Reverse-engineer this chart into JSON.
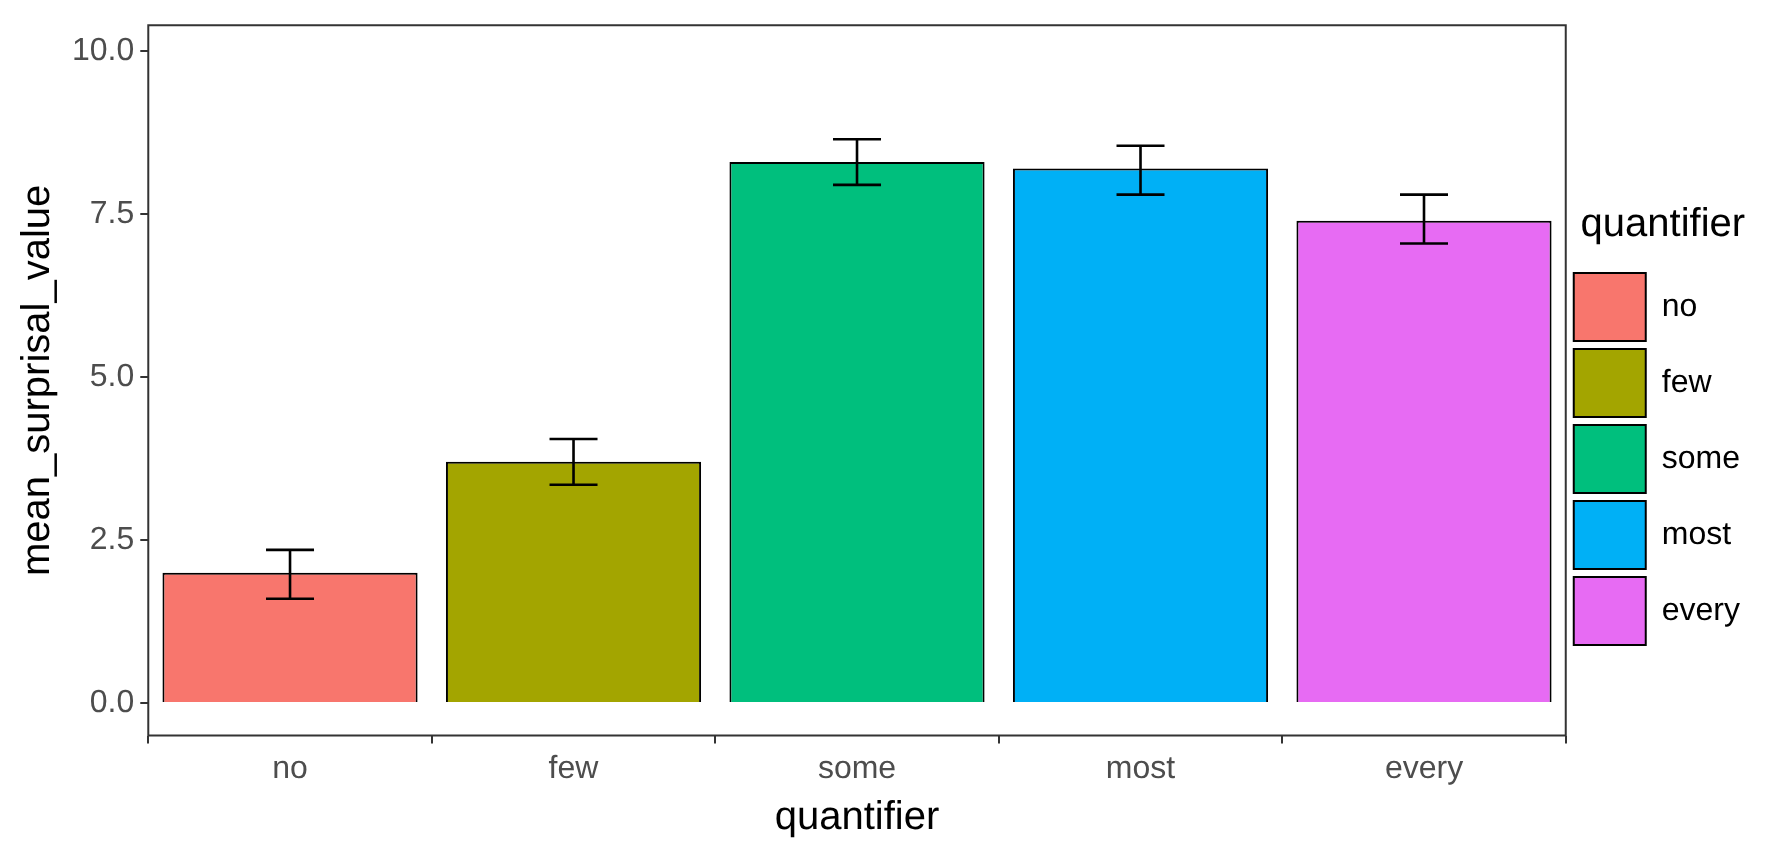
{
  "chart_data": {
    "type": "bar",
    "xlabel": "quantifier",
    "ylabel": "mean_surprisal_value",
    "legend_title": "quantifier",
    "categories": [
      "no",
      "few",
      "some",
      "most",
      "every"
    ],
    "series": [
      {
        "name": "no",
        "color": "#f8766d",
        "values": [
          2.0,
          null,
          null,
          null,
          null
        ],
        "errors": [
          [
            1.6,
            2.35
          ],
          null,
          null,
          null,
          null
        ]
      },
      {
        "name": "few",
        "color": "#a3a500",
        "values": [
          null,
          3.7,
          null,
          null,
          null
        ],
        "errors": [
          null,
          [
            3.35,
            4.05
          ],
          null,
          null,
          null
        ]
      },
      {
        "name": "some",
        "color": "#00bf7d",
        "values": [
          null,
          null,
          8.3,
          null,
          null
        ],
        "errors": [
          null,
          null,
          [
            7.95,
            8.65
          ],
          null,
          null
        ]
      },
      {
        "name": "most",
        "color": "#00b0f6",
        "values": [
          null,
          null,
          null,
          8.2,
          null
        ],
        "errors": [
          null,
          null,
          null,
          [
            7.8,
            8.55
          ],
          null
        ]
      },
      {
        "name": "every",
        "color": "#e76bf3",
        "values": [
          null,
          null,
          null,
          null,
          7.4
        ],
        "errors": [
          null,
          null,
          null,
          null,
          [
            7.05,
            7.8
          ]
        ]
      }
    ],
    "ylim": [
      -0.5,
      10.4
    ],
    "yticks": [
      {
        "value": 0,
        "label": "0.0"
      },
      {
        "value": 2.5,
        "label": "2.5"
      },
      {
        "value": 5,
        "label": "5.0"
      },
      {
        "value": 7.5,
        "label": "7.5"
      },
      {
        "value": 10,
        "label": "10.0"
      }
    ],
    "grid": false,
    "legend": "right"
  }
}
